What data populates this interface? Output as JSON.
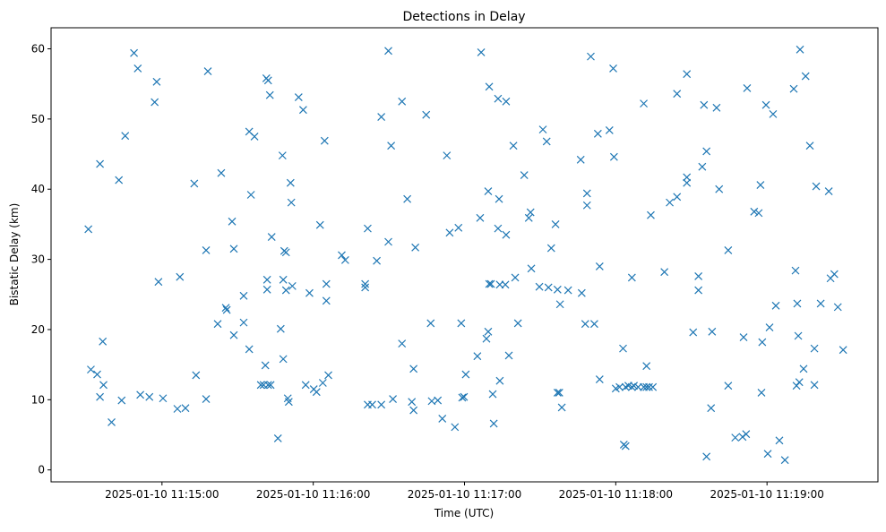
{
  "chart_data": {
    "type": "scatter",
    "title": "Detections in Delay",
    "xlabel": "Time (UTC)",
    "ylabel": "Bistatic Delay (km)",
    "x_origin": "2025-01-10 11:15:00",
    "x_unit": "seconds",
    "xlim": [
      -44,
      284
    ],
    "ylim": [
      -1.7,
      63
    ],
    "x_ticks": [
      {
        "value": 0,
        "label": "2025-01-10 11:15:00"
      },
      {
        "value": 60,
        "label": "2025-01-10 11:16:00"
      },
      {
        "value": 120,
        "label": "2025-01-10 11:17:00"
      },
      {
        "value": 180,
        "label": "2025-01-10 11:18:00"
      },
      {
        "value": 240,
        "label": "2025-01-10 11:19:00"
      }
    ],
    "y_ticks": [
      {
        "value": 0,
        "label": "0"
      },
      {
        "value": 10,
        "label": "10"
      },
      {
        "value": 20,
        "label": "20"
      },
      {
        "value": 30,
        "label": "30"
      },
      {
        "value": 40,
        "label": "40"
      },
      {
        "value": 50,
        "label": "50"
      },
      {
        "value": 60,
        "label": "60"
      }
    ],
    "grid": false,
    "marker": "x",
    "color": "#1f77b4",
    "points": [
      [
        -29.2,
        34.3
      ],
      [
        -28.2,
        14.3
      ],
      [
        -25.7,
        13.6
      ],
      [
        -24.6,
        43.6
      ],
      [
        -24.6,
        10.4
      ],
      [
        -23.5,
        18.3
      ],
      [
        -23.2,
        12.1
      ],
      [
        -20.0,
        6.8
      ],
      [
        -17.1,
        41.3
      ],
      [
        -16.0,
        9.9
      ],
      [
        -14.6,
        47.6
      ],
      [
        -11.1,
        59.4
      ],
      [
        -9.6,
        57.2
      ],
      [
        -8.6,
        10.7
      ],
      [
        -5.0,
        10.4
      ],
      [
        -2.9,
        52.4
      ],
      [
        -2.1,
        55.3
      ],
      [
        -1.4,
        26.8
      ],
      [
        0.4,
        10.2
      ],
      [
        6.1,
        8.7
      ],
      [
        7.1,
        27.5
      ],
      [
        9.3,
        8.8
      ],
      [
        12.8,
        40.8
      ],
      [
        13.5,
        13.5
      ],
      [
        17.5,
        10.1
      ],
      [
        17.5,
        31.3
      ],
      [
        18.2,
        56.8
      ],
      [
        22.1,
        20.8
      ],
      [
        23.5,
        42.3
      ],
      [
        25.3,
        23.1
      ],
      [
        25.7,
        22.8
      ],
      [
        27.8,
        35.4
      ],
      [
        28.5,
        31.5
      ],
      [
        28.5,
        19.2
      ],
      [
        32.4,
        24.8
      ],
      [
        32.4,
        21.0
      ],
      [
        34.6,
        48.2
      ],
      [
        34.6,
        17.2
      ],
      [
        35.3,
        39.2
      ],
      [
        36.7,
        47.5
      ],
      [
        39.2,
        12.1
      ],
      [
        40.3,
        12.1
      ],
      [
        41.0,
        14.9
      ],
      [
        41.4,
        55.8
      ],
      [
        42.1,
        55.5
      ],
      [
        41.7,
        27.1
      ],
      [
        41.7,
        25.7
      ],
      [
        42.8,
        53.4
      ],
      [
        43.1,
        12.1
      ],
      [
        43.5,
        33.2
      ],
      [
        42.1,
        12.1
      ],
      [
        46.0,
        4.5
      ],
      [
        47.1,
        20.1
      ],
      [
        47.8,
        44.8
      ],
      [
        48.1,
        27.1
      ],
      [
        48.1,
        15.8
      ],
      [
        48.5,
        31.2
      ],
      [
        49.2,
        31.0
      ],
      [
        49.2,
        25.6
      ],
      [
        49.9,
        10.2
      ],
      [
        50.3,
        9.7
      ],
      [
        51.0,
        40.9
      ],
      [
        51.3,
        38.1
      ],
      [
        51.7,
        26.2
      ],
      [
        54.2,
        53.1
      ],
      [
        56.0,
        51.3
      ],
      [
        57.0,
        12.1
      ],
      [
        58.5,
        25.2
      ],
      [
        60.2,
        11.5
      ],
      [
        61.3,
        11.1
      ],
      [
        62.7,
        34.9
      ],
      [
        63.8,
        12.4
      ],
      [
        64.5,
        46.9
      ],
      [
        65.2,
        26.5
      ],
      [
        65.2,
        24.1
      ],
      [
        66.0,
        13.5
      ],
      [
        71.3,
        30.6
      ],
      [
        72.7,
        29.9
      ],
      [
        80.6,
        26.0
      ],
      [
        80.6,
        26.5
      ],
      [
        81.6,
        34.4
      ],
      [
        81.6,
        9.3
      ],
      [
        83.4,
        9.3
      ],
      [
        85.2,
        29.8
      ],
      [
        87.0,
        9.3
      ],
      [
        87.0,
        50.3
      ],
      [
        89.8,
        32.5
      ],
      [
        89.8,
        59.7
      ],
      [
        90.9,
        46.2
      ],
      [
        91.6,
        10.1
      ],
      [
        95.2,
        18.0
      ],
      [
        95.2,
        52.5
      ],
      [
        97.3,
        38.6
      ],
      [
        99.1,
        9.7
      ],
      [
        99.8,
        14.4
      ],
      [
        99.8,
        8.5
      ],
      [
        100.5,
        31.7
      ],
      [
        104.8,
        50.6
      ],
      [
        106.6,
        20.9
      ],
      [
        107.0,
        9.8
      ],
      [
        109.4,
        9.9
      ],
      [
        111.2,
        7.3
      ],
      [
        113.0,
        44.8
      ],
      [
        114.1,
        33.8
      ],
      [
        116.2,
        6.1
      ],
      [
        117.6,
        34.5
      ],
      [
        118.7,
        20.9
      ],
      [
        119.1,
        10.3
      ],
      [
        119.8,
        10.4
      ],
      [
        120.5,
        13.6
      ],
      [
        125.1,
        16.2
      ],
      [
        126.2,
        35.9
      ],
      [
        126.6,
        59.5
      ],
      [
        128.7,
        18.7
      ],
      [
        129.4,
        39.7
      ],
      [
        129.4,
        19.7
      ],
      [
        129.8,
        54.6
      ],
      [
        129.8,
        26.5
      ],
      [
        130.5,
        26.5
      ],
      [
        131.2,
        10.8
      ],
      [
        131.6,
        6.6
      ],
      [
        133.3,
        34.4
      ],
      [
        133.3,
        52.9
      ],
      [
        133.7,
        38.6
      ],
      [
        134.0,
        12.7
      ],
      [
        134.0,
        26.4
      ],
      [
        136.2,
        26.4
      ],
      [
        136.5,
        52.5
      ],
      [
        136.5,
        33.5
      ],
      [
        137.6,
        16.3
      ],
      [
        139.4,
        46.2
      ],
      [
        140.1,
        27.4
      ],
      [
        141.2,
        20.9
      ],
      [
        143.7,
        42.0
      ],
      [
        145.5,
        35.9
      ],
      [
        146.2,
        36.7
      ],
      [
        146.5,
        28.7
      ],
      [
        149.7,
        26.1
      ],
      [
        151.1,
        48.5
      ],
      [
        152.6,
        46.8
      ],
      [
        153.3,
        26.0
      ],
      [
        154.4,
        31.6
      ],
      [
        156.1,
        35.0
      ],
      [
        156.9,
        25.7
      ],
      [
        156.9,
        11.0
      ],
      [
        157.6,
        11.0
      ],
      [
        157.9,
        23.6
      ],
      [
        158.6,
        8.9
      ],
      [
        161.1,
        25.6
      ],
      [
        166.1,
        44.2
      ],
      [
        166.5,
        25.2
      ],
      [
        167.9,
        20.8
      ],
      [
        168.6,
        39.4
      ],
      [
        168.6,
        37.7
      ],
      [
        170.1,
        58.9
      ],
      [
        171.5,
        20.8
      ],
      [
        172.9,
        47.9
      ],
      [
        173.6,
        12.9
      ],
      [
        173.6,
        29.0
      ],
      [
        177.5,
        48.4
      ],
      [
        179.0,
        57.2
      ],
      [
        179.3,
        44.6
      ],
      [
        180.0,
        11.6
      ],
      [
        181.5,
        11.8
      ],
      [
        182.9,
        17.3
      ],
      [
        183.2,
        3.6
      ],
      [
        183.9,
        3.4
      ],
      [
        183.9,
        11.8
      ],
      [
        185.0,
        12.0
      ],
      [
        186.4,
        27.4
      ],
      [
        186.4,
        11.8
      ],
      [
        187.2,
        12.0
      ],
      [
        188.9,
        11.8
      ],
      [
        191.1,
        52.2
      ],
      [
        191.1,
        11.8
      ],
      [
        192.2,
        14.8
      ],
      [
        192.2,
        11.8
      ],
      [
        193.2,
        11.8
      ],
      [
        193.9,
        36.3
      ],
      [
        194.7,
        11.8
      ],
      [
        199.3,
        28.2
      ],
      [
        201.4,
        38.1
      ],
      [
        204.3,
        53.6
      ],
      [
        204.3,
        38.9
      ],
      [
        208.2,
        56.4
      ],
      [
        208.2,
        41.7
      ],
      [
        208.2,
        40.9
      ],
      [
        210.7,
        19.6
      ],
      [
        212.8,
        27.6
      ],
      [
        212.8,
        25.6
      ],
      [
        214.3,
        43.2
      ],
      [
        215.0,
        52.0
      ],
      [
        216.0,
        1.9
      ],
      [
        216.0,
        45.4
      ],
      [
        217.8,
        8.8
      ],
      [
        218.2,
        19.7
      ],
      [
        220.0,
        51.6
      ],
      [
        221.0,
        40.0
      ],
      [
        224.6,
        31.3
      ],
      [
        224.6,
        12.0
      ],
      [
        227.4,
        4.6
      ],
      [
        230.3,
        4.7
      ],
      [
        230.7,
        18.9
      ],
      [
        231.7,
        5.1
      ],
      [
        232.1,
        54.4
      ],
      [
        234.9,
        36.8
      ],
      [
        236.7,
        36.6
      ],
      [
        237.4,
        40.6
      ],
      [
        237.8,
        11.0
      ],
      [
        238.1,
        18.2
      ],
      [
        239.6,
        52.0
      ],
      [
        240.3,
        2.3
      ],
      [
        241.0,
        20.3
      ],
      [
        242.4,
        50.7
      ],
      [
        243.5,
        23.4
      ],
      [
        244.9,
        4.2
      ],
      [
        247.1,
        1.4
      ],
      [
        250.6,
        54.3
      ],
      [
        251.3,
        28.4
      ],
      [
        251.7,
        12.0
      ],
      [
        252.0,
        23.7
      ],
      [
        252.4,
        19.1
      ],
      [
        252.8,
        12.5
      ],
      [
        253.1,
        59.9
      ],
      [
        254.5,
        14.4
      ],
      [
        255.3,
        56.1
      ],
      [
        257.0,
        46.2
      ],
      [
        258.8,
        17.3
      ],
      [
        258.8,
        12.1
      ],
      [
        259.5,
        40.4
      ],
      [
        261.3,
        23.7
      ],
      [
        264.5,
        39.7
      ],
      [
        265.2,
        27.3
      ],
      [
        266.7,
        27.9
      ],
      [
        268.1,
        23.2
      ],
      [
        270.2,
        17.1
      ]
    ]
  }
}
